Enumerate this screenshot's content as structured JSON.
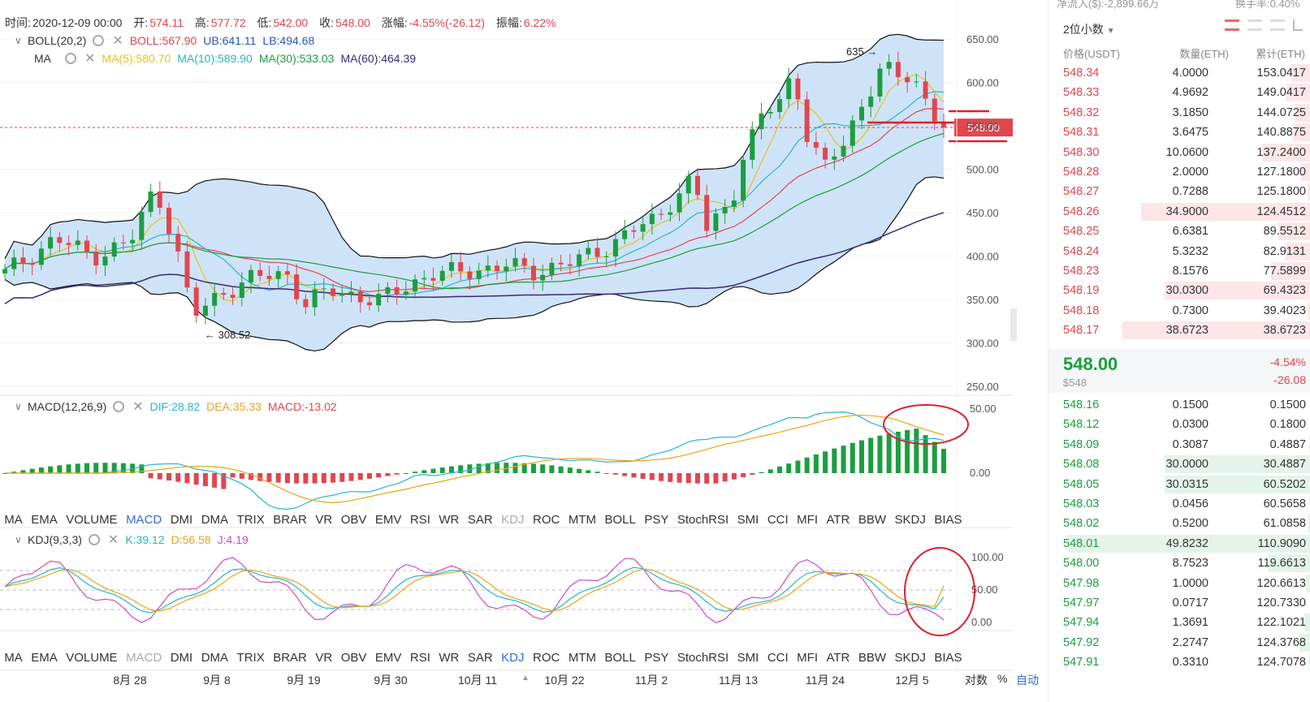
{
  "info": {
    "time_label": "时间:",
    "time": "2020-12-09 00:00",
    "open_label": "开:",
    "open": "574.11",
    "high_label": "高:",
    "high": "577.72",
    "low_label": "低:",
    "low": "542.00",
    "close_label": "收:",
    "close": "548.00",
    "change_label": "涨幅:",
    "change": "-4.55%(-26.12)",
    "amp_label": "振幅:",
    "amp": "6.22%"
  },
  "boll": {
    "name": "BOLL(20,2)",
    "boll": "BOLL:567.90",
    "ub": "UB:641.11",
    "lb": "LB:494.68"
  },
  "ma": {
    "name": "MA",
    "ma5": "MA(5):580.70",
    "ma10": "MA(10):589.90",
    "ma30": "MA(30):533.03",
    "ma60": "MA(60):464.39"
  },
  "macd": {
    "name": "MACD(12,26,9)",
    "dif": "DIF:28.82",
    "dea": "DEA:35.33",
    "macd": "MACD:-13.02"
  },
  "kdj": {
    "name": "KDJ(9,3,3)",
    "k": "K:39.12",
    "d": "D:56.58",
    "j": "J:4.19"
  },
  "price_axis": [
    "650.00",
    "600.00",
    "550.00",
    "500.00",
    "450.00",
    "400.00",
    "350.00",
    "300.00",
    "250.00"
  ],
  "macd_axis": [
    "50.00",
    "0.00"
  ],
  "kdj_axis": [
    "100.00",
    "50.00",
    "0.00"
  ],
  "current_price_tag": "548.00",
  "annotations": {
    "high": "635",
    "low": "308.52"
  },
  "indicator_tabs": [
    "MA",
    "EMA",
    "VOLUME",
    "MACD",
    "DMI",
    "DMA",
    "TRIX",
    "BRAR",
    "VR",
    "OBV",
    "EMV",
    "RSI",
    "WR",
    "SAR",
    "KDJ",
    "ROC",
    "MTM",
    "BOLL",
    "PSY",
    "StochRSI",
    "SMI",
    "CCI",
    "MFI",
    "ATR",
    "BBW",
    "SKDJ",
    "BIAS"
  ],
  "dates": [
    "8月 28",
    "9月 8",
    "9月 19",
    "9月 30",
    "10月 11",
    "10月 22",
    "11月 2",
    "11月 13",
    "11月 24",
    "12月 5"
  ],
  "scale": {
    "log": "对数",
    "pct": "%",
    "auto": "自动"
  },
  "book": {
    "top_text": "净流入($):-2,899.66万",
    "top_right": "换手率:0.40%",
    "decimal": "2位小数",
    "head": {
      "price": "价格(USDT)",
      "qty": "数量(ETH)",
      "cum": "累计(ETH)"
    },
    "asks": [
      {
        "p": "548.34",
        "q": "4.0000",
        "c": "153.0417"
      },
      {
        "p": "548.33",
        "q": "4.9692",
        "c": "149.0417"
      },
      {
        "p": "548.32",
        "q": "3.1850",
        "c": "144.0725"
      },
      {
        "p": "548.31",
        "q": "3.6475",
        "c": "140.8875"
      },
      {
        "p": "548.30",
        "q": "10.0600",
        "c": "137.2400"
      },
      {
        "p": "548.28",
        "q": "2.0000",
        "c": "127.1800"
      },
      {
        "p": "548.27",
        "q": "0.7288",
        "c": "125.1800"
      },
      {
        "p": "548.26",
        "q": "34.9000",
        "c": "124.4512"
      },
      {
        "p": "548.25",
        "q": "6.6381",
        "c": "89.5512"
      },
      {
        "p": "548.24",
        "q": "5.3232",
        "c": "82.9131"
      },
      {
        "p": "548.23",
        "q": "8.1576",
        "c": "77.5899"
      },
      {
        "p": "548.19",
        "q": "30.0300",
        "c": "69.4323"
      },
      {
        "p": "548.18",
        "q": "0.7300",
        "c": "39.4023"
      },
      {
        "p": "548.17",
        "q": "38.6723",
        "c": "38.6723"
      }
    ],
    "last_price": "548.00",
    "last_usd": "$548",
    "last_pct": "-4.54%",
    "last_chg": "-26.08",
    "bids": [
      {
        "p": "548.16",
        "q": "0.1500",
        "c": "0.1500"
      },
      {
        "p": "548.12",
        "q": "0.0300",
        "c": "0.1800"
      },
      {
        "p": "548.09",
        "q": "0.3087",
        "c": "0.4887"
      },
      {
        "p": "548.08",
        "q": "30.0000",
        "c": "30.4887"
      },
      {
        "p": "548.05",
        "q": "30.0315",
        "c": "60.5202"
      },
      {
        "p": "548.03",
        "q": "0.0456",
        "c": "60.5658"
      },
      {
        "p": "548.02",
        "q": "0.5200",
        "c": "61.0858"
      },
      {
        "p": "548.01",
        "q": "49.8232",
        "c": "110.9090"
      },
      {
        "p": "548.00",
        "q": "8.7523",
        "c": "119.6613"
      },
      {
        "p": "547.98",
        "q": "1.0000",
        "c": "120.6613"
      },
      {
        "p": "547.97",
        "q": "0.0717",
        "c": "120.7330"
      },
      {
        "p": "547.94",
        "q": "1.3691",
        "c": "122.1021"
      },
      {
        "p": "547.92",
        "q": "2.2747",
        "c": "124.3768"
      },
      {
        "p": "547.91",
        "q": "0.3310",
        "c": "124.7078"
      }
    ]
  },
  "colors": {
    "up": "#1b9e3e",
    "down": "#e0464e",
    "active_tab": "#2f6fd6",
    "band_fill": "#cfe3f8"
  }
}
